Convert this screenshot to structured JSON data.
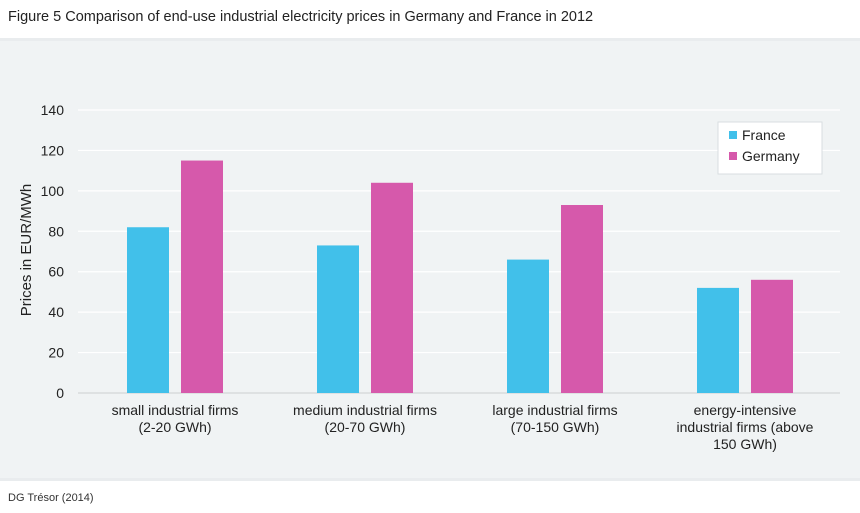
{
  "header": {
    "title": "Figure 5 Comparison of end-use industrial electricity prices in Germany and France in 2012"
  },
  "footer": {
    "source": "DG Trésor (2014)"
  },
  "chart_data": {
    "type": "bar",
    "title": "Figure 5 Comparison of end-use industrial electricity prices in Germany and France in 2012",
    "ylabel": "Prices in EUR/MWh",
    "xlabel": "",
    "ylim": [
      0,
      140
    ],
    "yticks": [
      0,
      20,
      40,
      60,
      80,
      100,
      120,
      140
    ],
    "grid": "horizontal",
    "legend_position": "top-right",
    "categories": [
      [
        "small industrial firms",
        "(2-20 GWh)"
      ],
      [
        "medium industrial firms",
        "(20-70 GWh)"
      ],
      [
        "large industrial firms",
        "(70-150 GWh)"
      ],
      [
        "energy-intensive",
        "industrial firms (above",
        "150 GWh)"
      ]
    ],
    "series": [
      {
        "name": "France",
        "color": "#41c0ea",
        "values": [
          82,
          73,
          66,
          52
        ]
      },
      {
        "name": "Germany",
        "color": "#d659ab",
        "values": [
          115,
          104,
          93,
          56
        ]
      }
    ]
  }
}
